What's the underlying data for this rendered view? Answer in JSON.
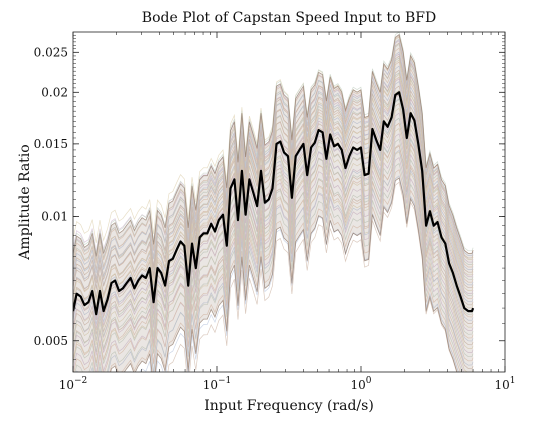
{
  "chart_data": {
    "type": "line",
    "title": "Bode Plot of Capstan Speed Input to BFD",
    "xlabel": "Input Frequency (rad/s)",
    "ylabel": "Amplitude Ratio",
    "xscale": "log",
    "yscale": "log",
    "xlim": [
      0.01,
      10
    ],
    "ylim": [
      0.0042,
      0.028
    ],
    "grid": false,
    "x_ticks": [
      {
        "value": 0.01,
        "base": "10",
        "exp": "−2"
      },
      {
        "value": 0.1,
        "base": "10",
        "exp": "−1"
      },
      {
        "value": 1,
        "base": "10",
        "exp": "0"
      },
      {
        "value": 10,
        "base": "10",
        "exp": "1"
      }
    ],
    "y_ticks": [
      {
        "value": 0.005,
        "label": "0.005"
      },
      {
        "value": 0.01,
        "label": "0.01"
      },
      {
        "value": 0.015,
        "label": "0.015"
      },
      {
        "value": 0.02,
        "label": "0.02"
      },
      {
        "value": 0.025,
        "label": "0.025"
      }
    ],
    "colors": {
      "highlight": "#000000",
      "envelope": "#8a7262",
      "band_palette": [
        "#d7c4b8",
        "#c9d3e6",
        "#e8cfc0",
        "#cfd9cf",
        "#dcc9dc",
        "#e6dcc2"
      ]
    },
    "highlight_series": {
      "x": [
        0.01,
        0.0106,
        0.0113,
        0.012,
        0.0128,
        0.0136,
        0.0145,
        0.0154,
        0.0163,
        0.0174,
        0.0185,
        0.0196,
        0.0209,
        0.0222,
        0.0236,
        0.0251,
        0.0267,
        0.0284,
        0.0302,
        0.0321,
        0.0341,
        0.0363,
        0.0386,
        0.041,
        0.0436,
        0.0464,
        0.0493,
        0.0524,
        0.0558,
        0.0593,
        0.0631,
        0.0671,
        0.0713,
        0.0758,
        0.0806,
        0.0857,
        0.0912,
        0.0969,
        0.103,
        0.11,
        0.117,
        0.124,
        0.132,
        0.14,
        0.149,
        0.158,
        0.168,
        0.179,
        0.19,
        0.202,
        0.215,
        0.229,
        0.243,
        0.259,
        0.275,
        0.292,
        0.311,
        0.331,
        0.352,
        0.374,
        0.398,
        0.423,
        0.45,
        0.478,
        0.508,
        0.541,
        0.575,
        0.611,
        0.65,
        0.691,
        0.735,
        0.781,
        0.83,
        0.883,
        0.939,
        0.998,
        1.06,
        1.13,
        1.2,
        1.28,
        1.36,
        1.44,
        1.53,
        1.63,
        1.73,
        1.84,
        1.96,
        2.08,
        2.21,
        2.35,
        2.5,
        2.66,
        2.83,
        3.01,
        3.2,
        3.4,
        3.62,
        3.85,
        4.09,
        4.35,
        4.62,
        4.91,
        5.22,
        5.55,
        5.9,
        6.0
      ],
      "y": [
        0.0059,
        0.0065,
        0.0064,
        0.0061,
        0.0062,
        0.0066,
        0.0058,
        0.0066,
        0.0059,
        0.0063,
        0.0069,
        0.007,
        0.0066,
        0.0067,
        0.0069,
        0.0071,
        0.0067,
        0.007,
        0.0072,
        0.0071,
        0.0075,
        0.0062,
        0.0075,
        0.0073,
        0.0068,
        0.0078,
        0.0079,
        0.0083,
        0.0087,
        0.0085,
        0.0068,
        0.0086,
        0.0075,
        0.0089,
        0.0091,
        0.0091,
        0.0096,
        0.0092,
        0.0098,
        0.0101,
        0.0085,
        0.0117,
        0.0123,
        0.0098,
        0.0129,
        0.0101,
        0.0123,
        0.0114,
        0.0106,
        0.0129,
        0.0108,
        0.011,
        0.0117,
        0.015,
        0.0152,
        0.0143,
        0.014,
        0.0111,
        0.014,
        0.0145,
        0.015,
        0.0126,
        0.0147,
        0.0151,
        0.0162,
        0.016,
        0.0138,
        0.0158,
        0.0148,
        0.015,
        0.0145,
        0.0131,
        0.014,
        0.0147,
        0.0145,
        0.0147,
        0.0126,
        0.0127,
        0.0163,
        0.0153,
        0.0145,
        0.017,
        0.0165,
        0.0174,
        0.0197,
        0.02,
        0.0182,
        0.0155,
        0.0178,
        0.0171,
        0.015,
        0.0129,
        0.0095,
        0.0103,
        0.0095,
        0.0097,
        0.0089,
        0.0086,
        0.0077,
        0.0073,
        0.0068,
        0.0064,
        0.006,
        0.0059,
        0.0059,
        0.006
      ]
    }
  }
}
